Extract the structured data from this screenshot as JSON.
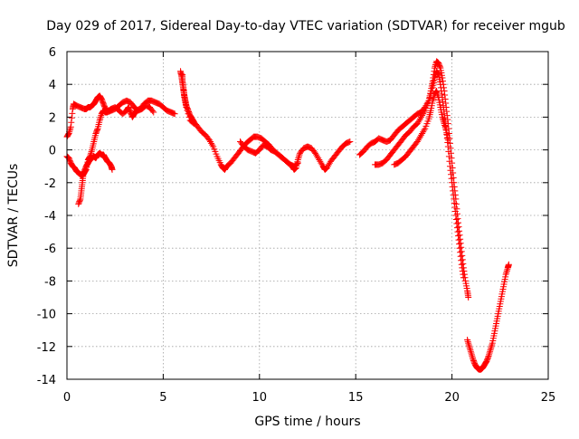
{
  "chart_data": {
    "type": "scatter",
    "title": "Day 029 of 2017, Sidereal Day-to-day VTEC variation (SDTVAR) for receiver mgub",
    "xlabel": "GPS time / hours",
    "ylabel": "SDTVAR / TECUs",
    "xlim": [
      0,
      25
    ],
    "ylim": [
      -14,
      6
    ],
    "x_ticks": [
      0,
      5,
      10,
      15,
      20,
      25
    ],
    "y_ticks": [
      -14,
      -12,
      -10,
      -8,
      -6,
      -4,
      -2,
      0,
      2,
      4,
      6
    ],
    "x_tick_labels": [
      "0",
      "5",
      "10",
      "15",
      "20",
      "25"
    ],
    "y_tick_labels": [
      "-14",
      "-12",
      "-10",
      "-8",
      "-6",
      "-4",
      "-2",
      "0",
      "2",
      "4",
      "6"
    ],
    "grid": true,
    "legend": "none",
    "marker": "plus",
    "color": "#ff0000",
    "series": [
      {
        "points": [
          [
            0.0,
            0.8
          ],
          [
            0.1,
            1.0
          ],
          [
            0.2,
            1.4
          ],
          [
            0.3,
            2.5
          ],
          [
            0.35,
            2.8
          ],
          [
            0.5,
            2.7
          ],
          [
            0.7,
            2.6
          ],
          [
            0.9,
            2.5
          ],
          [
            1.0,
            2.5
          ],
          [
            1.1,
            2.6
          ],
          [
            1.2,
            2.6
          ],
          [
            1.3,
            2.7
          ],
          [
            1.4,
            2.8
          ],
          [
            1.5,
            3.0
          ],
          [
            1.6,
            3.2
          ],
          [
            1.7,
            3.3
          ],
          [
            1.8,
            3.1
          ],
          [
            1.9,
            2.8
          ],
          [
            2.0,
            2.5
          ],
          [
            2.1,
            2.4
          ],
          [
            2.2,
            2.4
          ],
          [
            2.3,
            2.5
          ],
          [
            2.5,
            2.6
          ],
          [
            2.7,
            2.4
          ],
          [
            2.9,
            2.2
          ],
          [
            3.1,
            2.4
          ],
          [
            3.2,
            2.6
          ],
          [
            3.3,
            2.3
          ],
          [
            3.4,
            2.0
          ],
          [
            3.5,
            2.2
          ],
          [
            3.6,
            2.4
          ],
          [
            3.8,
            2.5
          ],
          [
            4.0,
            2.8
          ],
          [
            4.2,
            3.0
          ],
          [
            4.4,
            3.0
          ],
          [
            4.6,
            2.9
          ],
          [
            4.8,
            2.8
          ],
          [
            5.0,
            2.6
          ],
          [
            5.2,
            2.4
          ],
          [
            5.4,
            2.3
          ],
          [
            5.6,
            2.2
          ]
        ]
      },
      {
        "points": [
          [
            0.0,
            -0.4
          ],
          [
            0.1,
            -0.5
          ],
          [
            0.2,
            -0.8
          ],
          [
            0.3,
            -1.0
          ],
          [
            0.4,
            -1.1
          ],
          [
            0.5,
            -1.3
          ],
          [
            0.6,
            -1.4
          ],
          [
            0.7,
            -1.5
          ],
          [
            0.8,
            -1.6
          ],
          [
            0.9,
            -1.4
          ],
          [
            1.0,
            -1.2
          ],
          [
            1.1,
            -0.6
          ],
          [
            1.2,
            -0.4
          ],
          [
            1.3,
            0.0
          ],
          [
            1.4,
            0.5
          ],
          [
            1.5,
            1.0
          ],
          [
            1.6,
            1.3
          ],
          [
            1.7,
            1.8
          ],
          [
            1.8,
            2.2
          ],
          [
            1.9,
            2.4
          ],
          [
            2.0,
            2.3
          ],
          [
            2.1,
            2.3
          ],
          [
            2.3,
            2.4
          ],
          [
            2.5,
            2.5
          ],
          [
            2.7,
            2.7
          ],
          [
            2.9,
            2.9
          ],
          [
            3.1,
            3.0
          ],
          [
            3.3,
            2.9
          ],
          [
            3.5,
            2.6
          ],
          [
            3.7,
            2.4
          ],
          [
            3.9,
            2.5
          ],
          [
            4.1,
            2.7
          ],
          [
            4.3,
            2.6
          ],
          [
            4.5,
            2.3
          ]
        ]
      },
      {
        "points": [
          [
            0.6,
            -3.3
          ],
          [
            0.7,
            -3.0
          ],
          [
            0.75,
            -2.5
          ],
          [
            0.8,
            -2.0
          ],
          [
            0.85,
            -1.5
          ],
          [
            0.9,
            -1.3
          ],
          [
            1.0,
            -1.0
          ],
          [
            1.1,
            -0.8
          ],
          [
            1.2,
            -0.6
          ],
          [
            1.3,
            -0.5
          ],
          [
            1.4,
            -0.4
          ],
          [
            1.5,
            -0.5
          ],
          [
            1.6,
            -0.3
          ],
          [
            1.7,
            -0.2
          ],
          [
            1.8,
            -0.3
          ],
          [
            1.9,
            -0.3
          ],
          [
            2.0,
            -0.5
          ],
          [
            2.1,
            -0.7
          ],
          [
            2.2,
            -0.8
          ],
          [
            2.3,
            -1.0
          ],
          [
            2.35,
            -1.2
          ]
        ]
      },
      {
        "points": [
          [
            5.9,
            4.8
          ],
          [
            5.95,
            4.5
          ],
          [
            6.0,
            4.1
          ],
          [
            6.05,
            3.7
          ],
          [
            6.1,
            3.3
          ],
          [
            6.15,
            3.0
          ],
          [
            6.2,
            2.7
          ],
          [
            6.3,
            2.4
          ],
          [
            6.4,
            2.1
          ],
          [
            6.5,
            1.9
          ],
          [
            6.6,
            1.7
          ],
          [
            6.8,
            1.4
          ],
          [
            7.0,
            1.1
          ],
          [
            7.2,
            0.9
          ],
          [
            7.4,
            0.6
          ],
          [
            7.6,
            0.2
          ],
          [
            7.8,
            -0.4
          ],
          [
            8.0,
            -0.9
          ],
          [
            8.1,
            -1.1
          ],
          [
            8.2,
            -1.2
          ],
          [
            8.3,
            -1.0
          ],
          [
            8.5,
            -0.8
          ],
          [
            8.7,
            -0.5
          ],
          [
            8.9,
            -0.2
          ],
          [
            9.1,
            0.1
          ],
          [
            9.3,
            0.4
          ],
          [
            9.5,
            0.6
          ],
          [
            9.7,
            0.8
          ],
          [
            9.9,
            0.8
          ],
          [
            10.1,
            0.7
          ],
          [
            10.3,
            0.5
          ],
          [
            10.5,
            0.3
          ],
          [
            10.7,
            0.0
          ],
          [
            10.9,
            -0.2
          ],
          [
            11.1,
            -0.4
          ],
          [
            11.3,
            -0.6
          ],
          [
            11.5,
            -0.8
          ],
          [
            11.7,
            -1.0
          ],
          [
            11.8,
            -1.2
          ],
          [
            11.9,
            -1.1
          ],
          [
            12.0,
            -0.6
          ],
          [
            12.1,
            -0.2
          ],
          [
            12.3,
            0.1
          ],
          [
            12.5,
            0.2
          ],
          [
            12.7,
            0.1
          ],
          [
            12.9,
            -0.2
          ],
          [
            13.1,
            -0.6
          ],
          [
            13.3,
            -1.0
          ],
          [
            13.4,
            -1.2
          ],
          [
            13.5,
            -1.1
          ],
          [
            13.7,
            -0.7
          ],
          [
            13.9,
            -0.4
          ],
          [
            14.1,
            -0.1
          ],
          [
            14.3,
            0.2
          ],
          [
            14.5,
            0.4
          ],
          [
            14.7,
            0.5
          ]
        ]
      },
      {
        "points": [
          [
            6.0,
            4.6
          ],
          [
            6.0,
            4.2
          ],
          [
            6.05,
            3.8
          ],
          [
            6.1,
            3.2
          ],
          [
            6.2,
            2.6
          ],
          [
            6.4,
            1.8
          ],
          [
            6.6,
            1.6
          ]
        ]
      },
      {
        "points": [
          [
            9.0,
            0.5
          ],
          [
            9.2,
            0.2
          ],
          [
            9.4,
            0.0
          ],
          [
            9.6,
            -0.1
          ],
          [
            9.8,
            -0.2
          ],
          [
            10.0,
            0.0
          ],
          [
            10.2,
            0.3
          ],
          [
            10.4,
            0.2
          ],
          [
            10.6,
            0.0
          ],
          [
            10.8,
            -0.1
          ],
          [
            11.0,
            -0.3
          ],
          [
            11.2,
            -0.5
          ],
          [
            11.4,
            -0.7
          ],
          [
            11.6,
            -0.9
          ],
          [
            11.8,
            -1.0
          ],
          [
            12.0,
            -0.8
          ]
        ]
      },
      {
        "points": [
          [
            15.2,
            -0.3
          ],
          [
            15.4,
            -0.1
          ],
          [
            15.6,
            0.2
          ],
          [
            15.8,
            0.4
          ],
          [
            16.0,
            0.5
          ],
          [
            16.2,
            0.7
          ],
          [
            16.4,
            0.6
          ],
          [
            16.6,
            0.5
          ],
          [
            16.8,
            0.6
          ],
          [
            17.0,
            0.9
          ],
          [
            17.2,
            1.2
          ],
          [
            17.4,
            1.4
          ],
          [
            17.6,
            1.6
          ],
          [
            17.8,
            1.8
          ],
          [
            18.0,
            2.0
          ],
          [
            18.2,
            2.2
          ],
          [
            18.4,
            2.3
          ],
          [
            18.6,
            2.6
          ],
          [
            18.8,
            3.0
          ],
          [
            18.9,
            3.6
          ],
          [
            19.0,
            4.2
          ],
          [
            19.1,
            5.0
          ],
          [
            19.2,
            5.4
          ],
          [
            19.3,
            5.3
          ],
          [
            19.4,
            5.0
          ],
          [
            19.5,
            4.4
          ],
          [
            19.6,
            3.6
          ],
          [
            19.7,
            2.6
          ],
          [
            19.8,
            1.6
          ],
          [
            19.9,
            0.4
          ],
          [
            20.0,
            -0.8
          ],
          [
            20.1,
            -2.0
          ],
          [
            20.2,
            -3.0
          ],
          [
            20.3,
            -4.2
          ],
          [
            20.4,
            -5.2
          ],
          [
            20.5,
            -6.2
          ],
          [
            20.6,
            -7.2
          ],
          [
            20.7,
            -8.0
          ],
          [
            20.8,
            -8.6
          ],
          [
            20.85,
            -9.0
          ]
        ]
      },
      {
        "points": [
          [
            16.0,
            -0.9
          ],
          [
            16.2,
            -0.9
          ],
          [
            16.4,
            -0.8
          ],
          [
            16.6,
            -0.6
          ],
          [
            16.8,
            -0.3
          ],
          [
            17.0,
            0.0
          ],
          [
            17.2,
            0.3
          ],
          [
            17.4,
            0.6
          ],
          [
            17.6,
            0.9
          ],
          [
            17.8,
            1.1
          ],
          [
            18.0,
            1.4
          ],
          [
            18.2,
            1.6
          ],
          [
            18.4,
            2.0
          ],
          [
            18.6,
            2.4
          ],
          [
            18.8,
            3.0
          ],
          [
            19.0,
            3.8
          ],
          [
            19.1,
            4.4
          ],
          [
            19.2,
            4.8
          ],
          [
            19.3,
            4.6
          ],
          [
            19.4,
            4.0
          ],
          [
            19.5,
            3.2
          ],
          [
            19.6,
            2.2
          ],
          [
            19.7,
            1.2
          ],
          [
            19.8,
            0.2
          ],
          [
            19.9,
            -1.0
          ],
          [
            20.0,
            -2.0
          ],
          [
            20.1,
            -3.0
          ],
          [
            20.2,
            -4.0
          ],
          [
            20.3,
            -5.0
          ],
          [
            20.4,
            -6.0
          ],
          [
            20.5,
            -7.0
          ],
          [
            20.6,
            -7.8
          ]
        ]
      },
      {
        "points": [
          [
            17.0,
            -0.9
          ],
          [
            17.2,
            -0.8
          ],
          [
            17.4,
            -0.6
          ],
          [
            17.6,
            -0.4
          ],
          [
            17.8,
            -0.1
          ],
          [
            18.0,
            0.2
          ],
          [
            18.2,
            0.5
          ],
          [
            18.4,
            0.9
          ],
          [
            18.6,
            1.3
          ],
          [
            18.8,
            1.9
          ],
          [
            18.9,
            2.4
          ],
          [
            19.0,
            3.0
          ],
          [
            19.1,
            3.4
          ],
          [
            19.2,
            3.6
          ],
          [
            19.3,
            3.2
          ],
          [
            19.4,
            2.6
          ],
          [
            19.5,
            2.0
          ],
          [
            19.6,
            1.6
          ],
          [
            19.7,
            1.2
          ],
          [
            19.8,
            0.6
          ]
        ]
      },
      {
        "points": [
          [
            20.8,
            -11.6
          ],
          [
            20.9,
            -12.0
          ],
          [
            21.0,
            -12.4
          ],
          [
            21.1,
            -12.8
          ],
          [
            21.2,
            -13.1
          ],
          [
            21.3,
            -13.3
          ],
          [
            21.4,
            -13.4
          ],
          [
            21.5,
            -13.4
          ],
          [
            21.6,
            -13.3
          ],
          [
            21.7,
            -13.1
          ],
          [
            21.8,
            -12.9
          ],
          [
            21.9,
            -12.6
          ],
          [
            22.0,
            -12.2
          ],
          [
            22.1,
            -11.8
          ],
          [
            22.2,
            -11.2
          ],
          [
            22.3,
            -10.6
          ],
          [
            22.4,
            -10.0
          ],
          [
            22.5,
            -9.4
          ],
          [
            22.6,
            -8.8
          ],
          [
            22.7,
            -8.2
          ],
          [
            22.8,
            -7.6
          ],
          [
            22.9,
            -7.2
          ],
          [
            22.95,
            -7.0
          ]
        ]
      }
    ]
  }
}
